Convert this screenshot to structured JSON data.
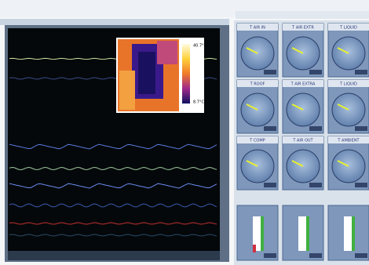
{
  "window": {
    "gauges": [
      {
        "title": "T AIR IN"
      },
      {
        "title": "T AIR EXTR"
      },
      {
        "title": "T LIQUID"
      },
      {
        "title": "T ROOF"
      },
      {
        "title": "T AIR EXTRA"
      },
      {
        "title": "T LIQUID"
      },
      {
        "title": "T COMP"
      },
      {
        "title": "T AIR OUT"
      },
      {
        "title": "T AMBIENT"
      }
    ],
    "thermal_scale": {
      "max": "40.7°C",
      "min": "8.7°C"
    }
  }
}
